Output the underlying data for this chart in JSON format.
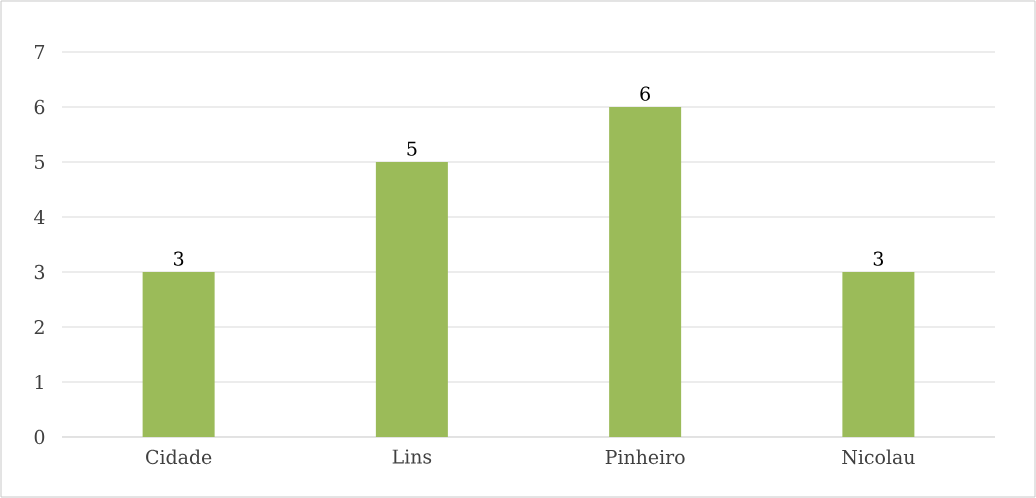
{
  "chart_data": {
    "type": "bar",
    "categories": [
      "Cidade",
      "Lins",
      "Pinheiro",
      "Nicolau"
    ],
    "values": [
      3,
      5,
      6,
      3
    ],
    "color": "#9bbb59",
    "ylim": [
      0,
      7
    ],
    "yticks": [
      0,
      1,
      2,
      3,
      4,
      5,
      6,
      7
    ],
    "grid": "y",
    "data_labels": true
  }
}
